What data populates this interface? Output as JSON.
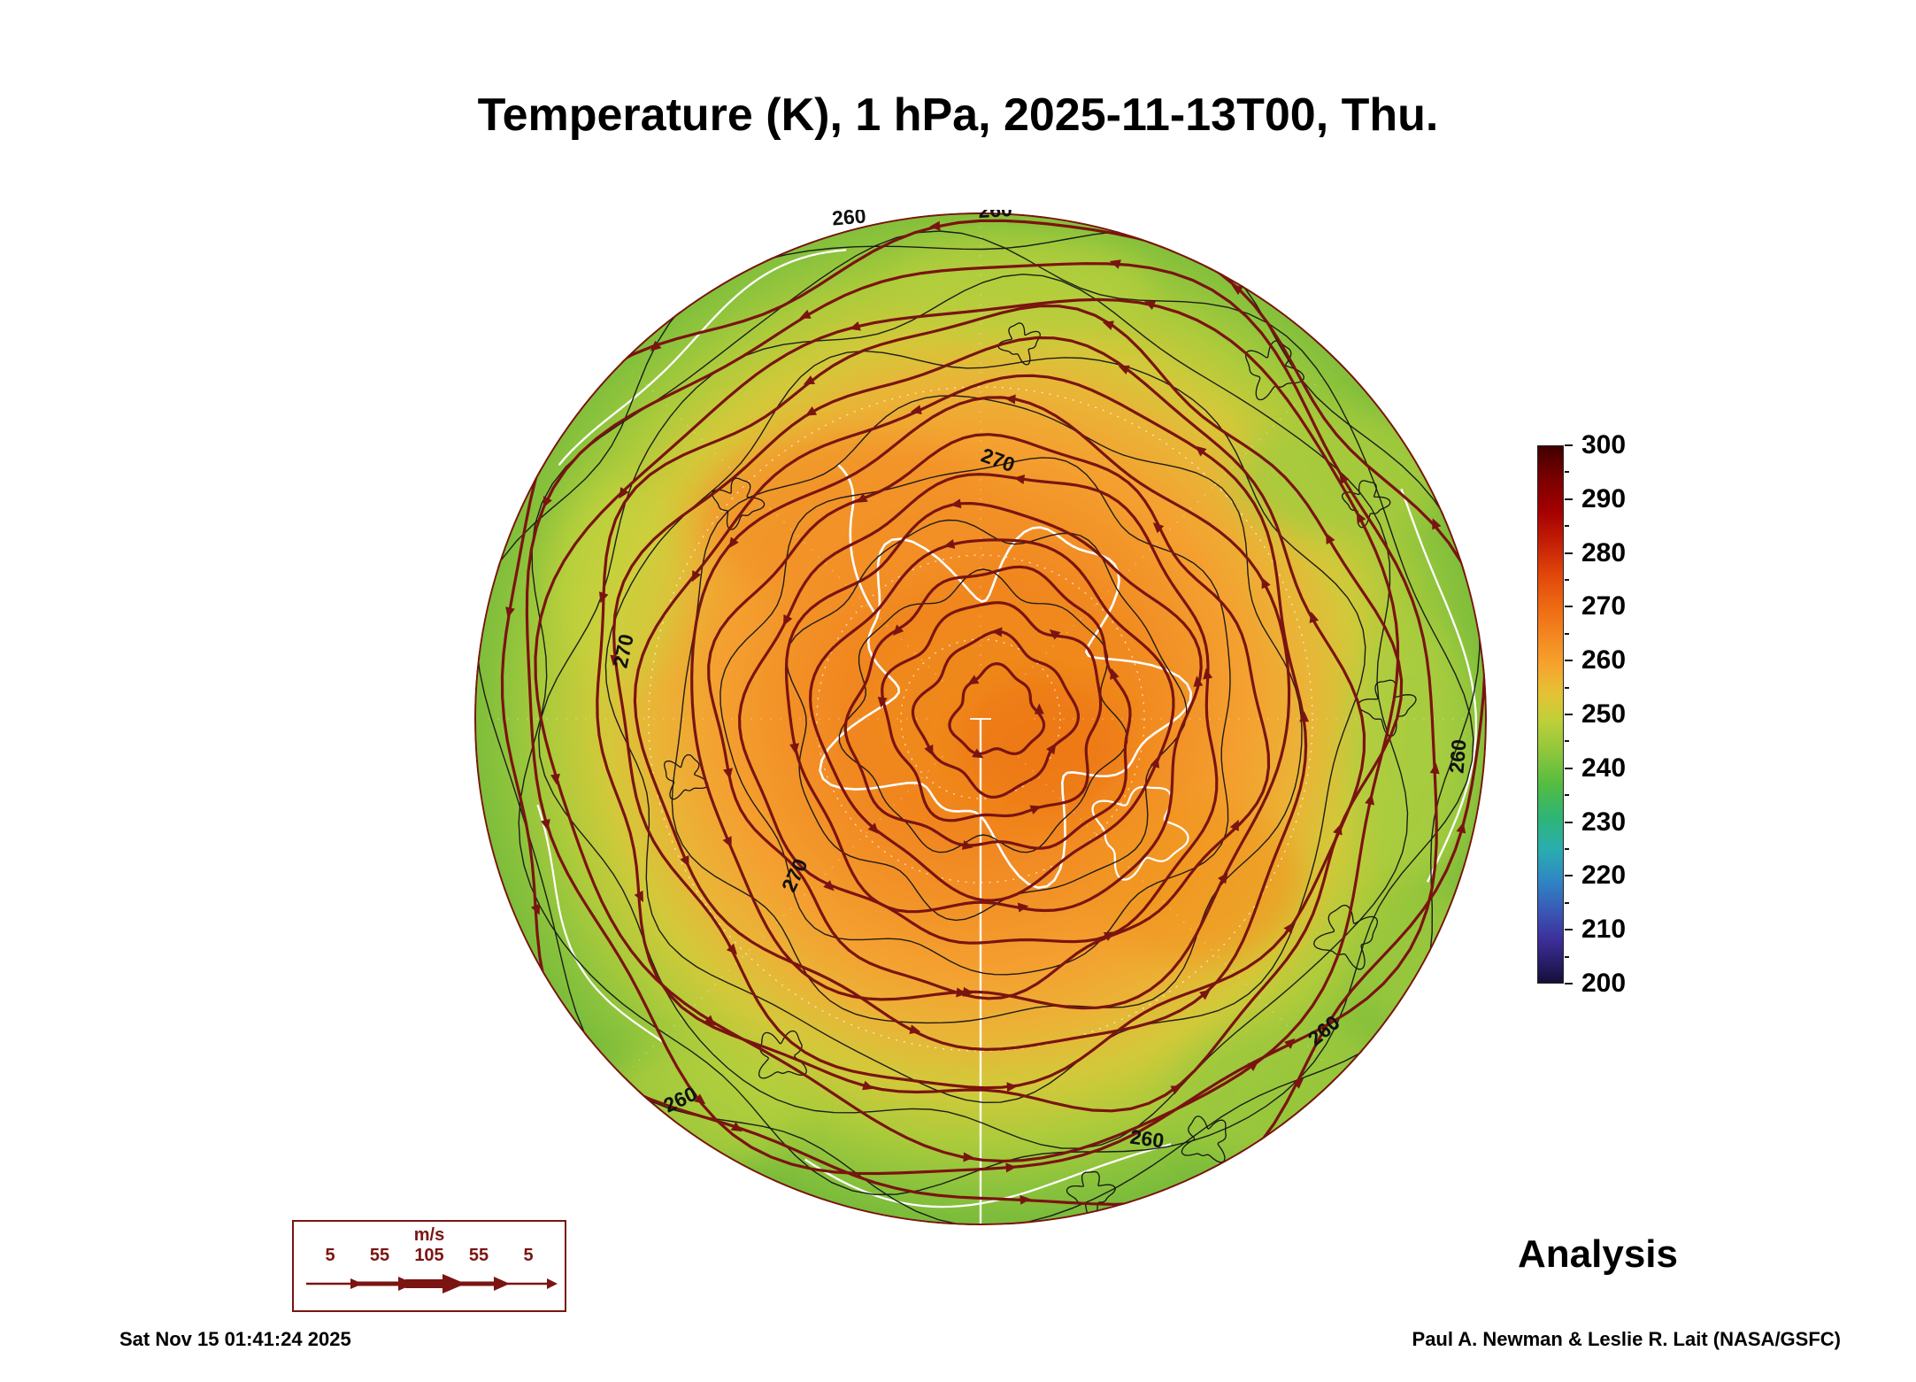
{
  "title": "Temperature (K), 1 hPa, 2025-11-13T00, Thu.",
  "analysis_label": "Analysis",
  "footer": {
    "timestamp": "Sat Nov 15 01:41:24 2025",
    "credit": "Paul A. Newman & Leslie R. Lait (NASA/GSFC)"
  },
  "wind_legend": {
    "unit": "m/s",
    "values": [
      "5",
      "55",
      "105",
      "55",
      "5"
    ]
  },
  "colorbar": {
    "ticks": [
      300,
      290,
      280,
      270,
      260,
      250,
      240,
      230,
      220,
      210,
      200
    ]
  },
  "map": {
    "contour_labels": [
      "260",
      "270"
    ]
  },
  "chart_data": {
    "type": "heatmap",
    "title": "Temperature (K), 1 hPa, 2025-11-13T00, Thu.",
    "variable": "Temperature",
    "units": "K",
    "level": "1 hPa",
    "valid_time": "2025-11-13T00, Thu.",
    "projection": "polar stereographic (Southern Hemisphere, Antarctica at center)",
    "colorbar": {
      "range": [
        200,
        300
      ],
      "ticks": [
        300,
        290,
        280,
        270,
        260,
        250,
        240,
        230,
        220,
        210,
        200
      ],
      "orientation": "vertical",
      "position": "right"
    },
    "contour_levels_labeled_K": [
      260,
      270
    ],
    "field_overview": {
      "polar_core_K": "approx 272-278 (warm orange core over the pole)",
      "midlatitude_ring_K": "approx 260-268 (orange to yellow)",
      "outer_edge_K": "approx 250-258 (yellow-green to green at map rim)"
    },
    "overlay": "wind streamlines with arrowheads (dark red), circumpolar flow around the pole",
    "wind_speed_legend_m_s": [
      5,
      55,
      105,
      55,
      5
    ],
    "annotation": "Analysis",
    "grid": "dashed white graticule with white coastlines and thin black temperature contours"
  }
}
